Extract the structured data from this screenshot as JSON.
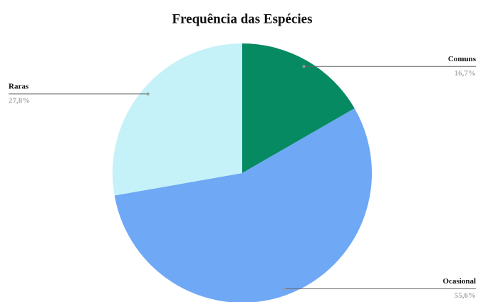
{
  "chart_data": {
    "type": "pie",
    "title": "Frequência das Espécies",
    "categories": [
      "Comuns",
      "Ocasional",
      "Raras"
    ],
    "values": [
      16.7,
      55.6,
      27.8
    ],
    "value_labels": [
      "16,7%",
      "55,6%",
      "27,8%"
    ],
    "colors": [
      "#058a62",
      "#6fa8f5",
      "#c4f2f8"
    ]
  }
}
